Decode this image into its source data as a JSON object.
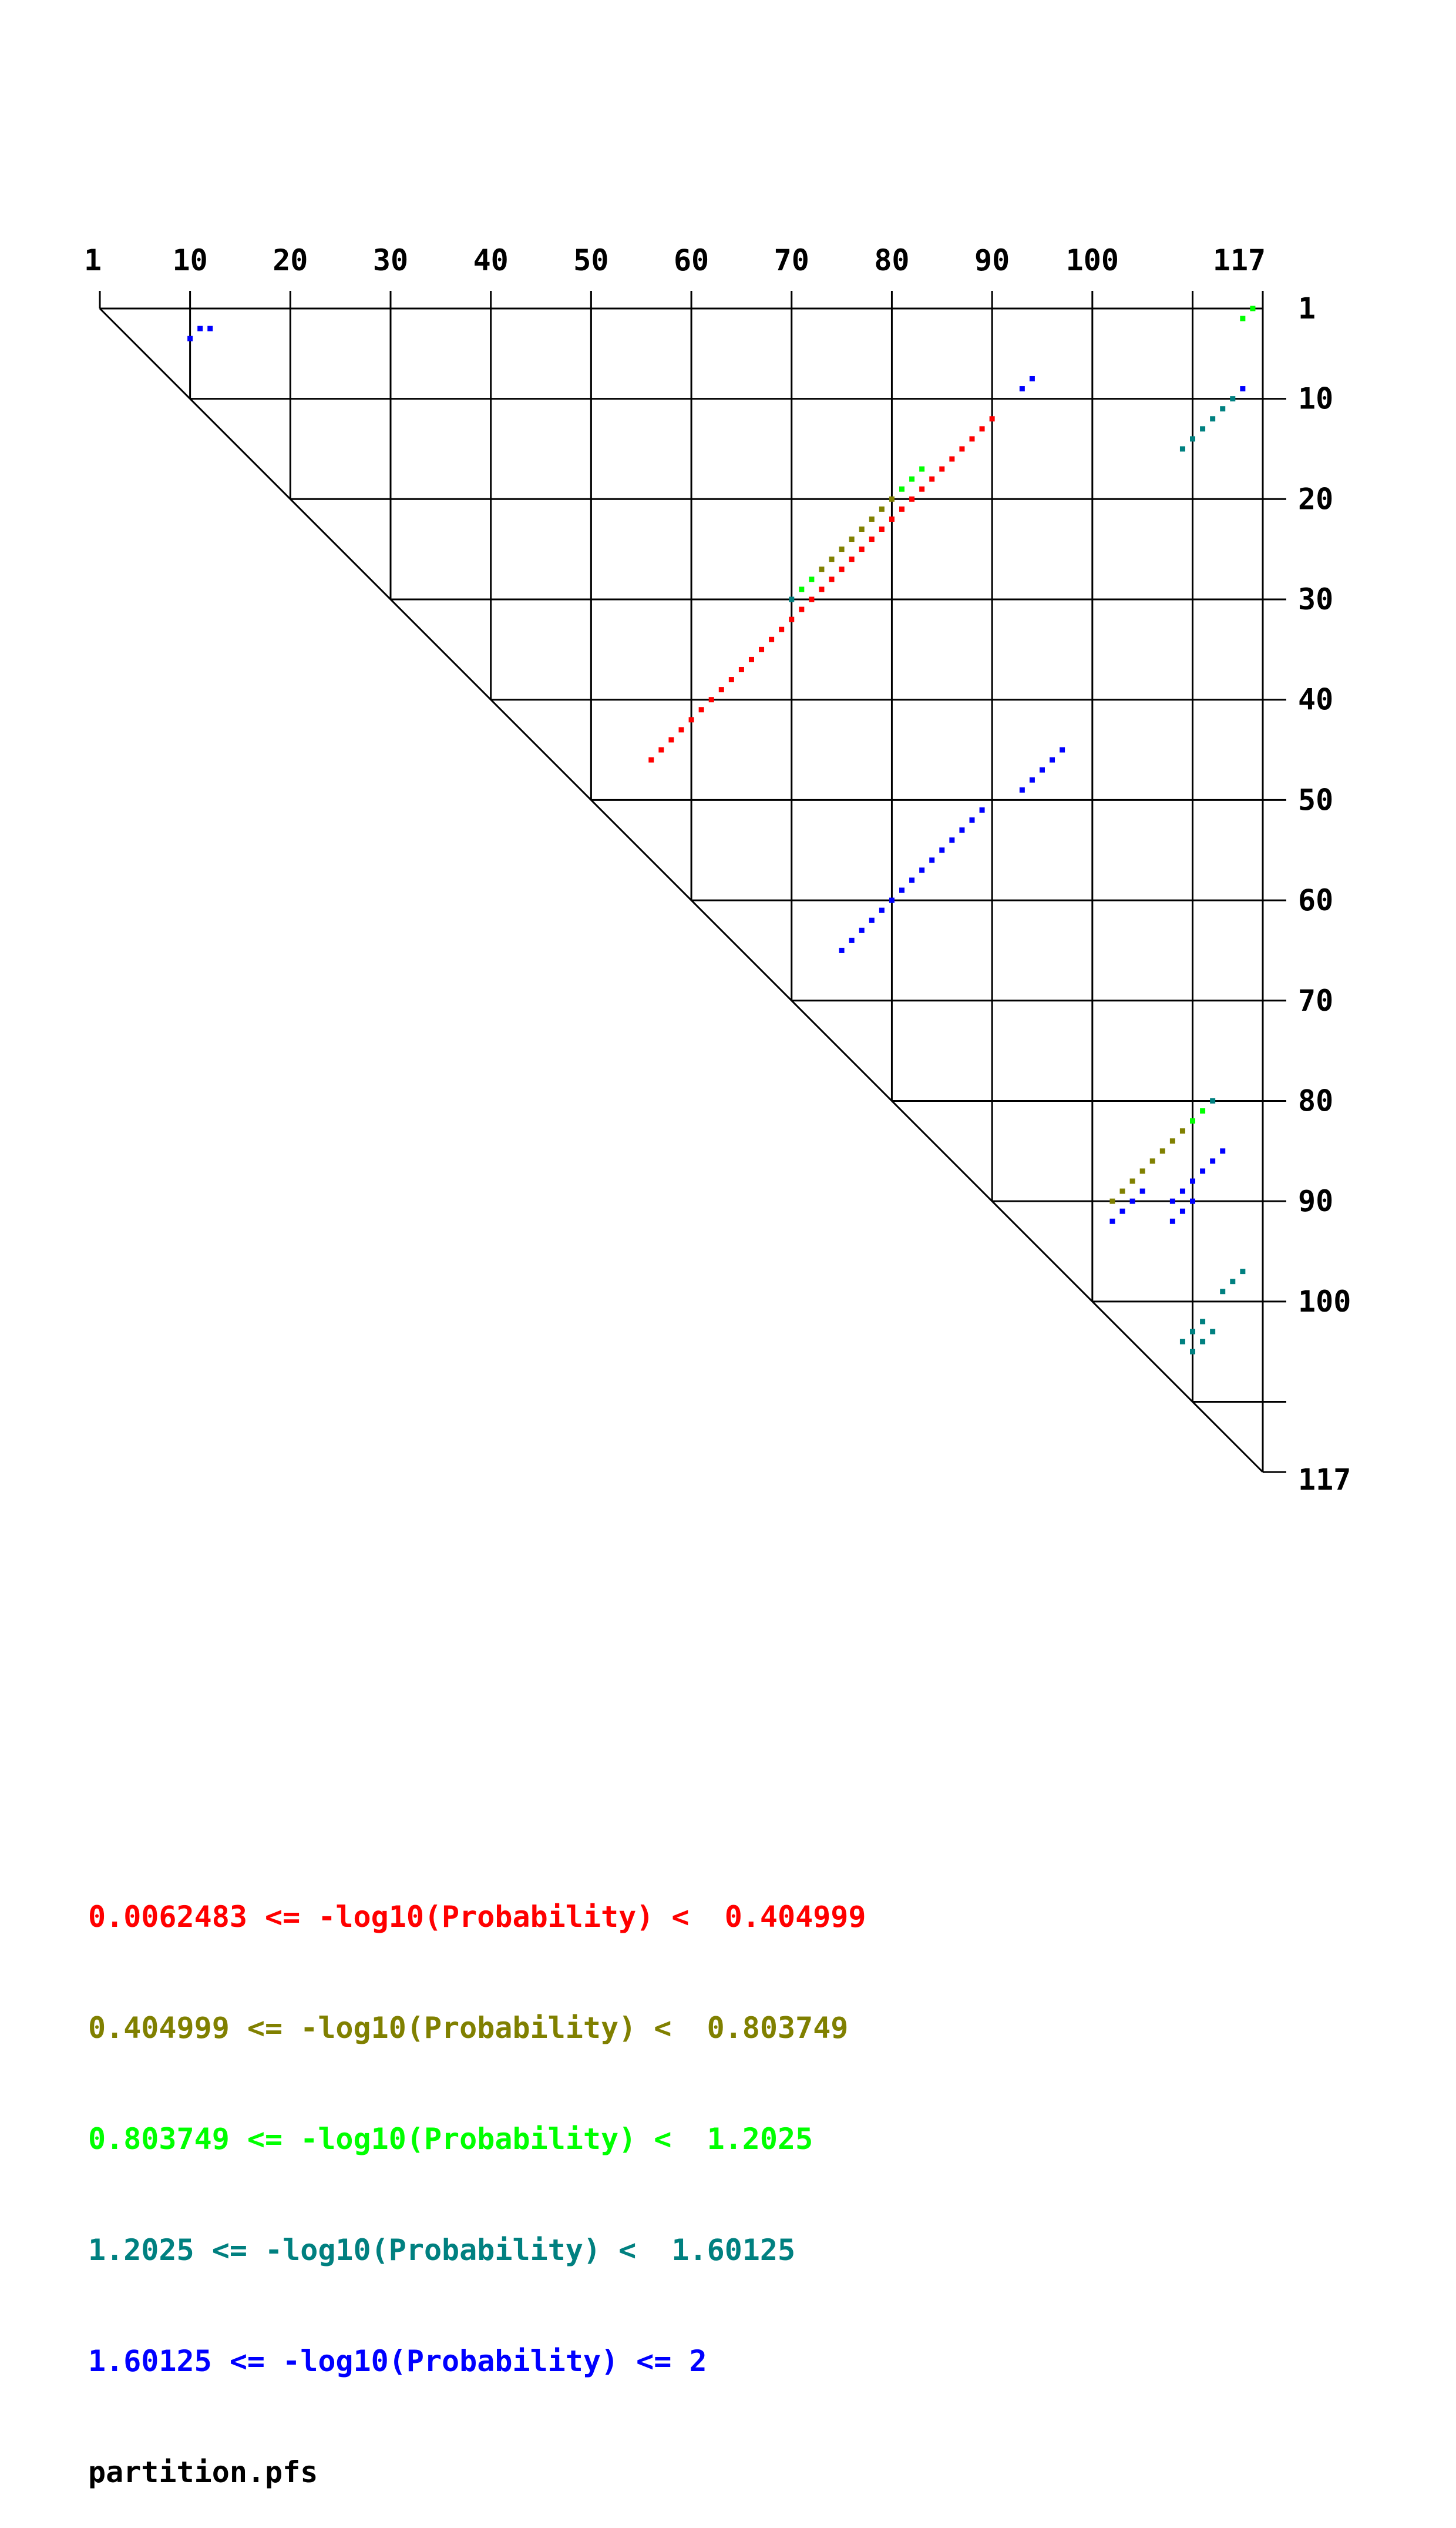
{
  "chart_data": {
    "type": "dot-plot",
    "sequence_length": 117,
    "top_ticks": [
      "1",
      "10",
      "20",
      "30",
      "40",
      "50",
      "60",
      "70",
      "80",
      "90",
      "100",
      "117"
    ],
    "right_ticks": [
      "1",
      "10",
      "20",
      "30",
      "40",
      "50",
      "60",
      "70",
      "80",
      "90",
      "100",
      "117"
    ],
    "grid_positions": [
      10,
      20,
      30,
      40,
      50,
      60,
      70,
      80,
      90,
      100,
      110
    ],
    "bins": [
      {
        "label": "0.0062483 <= -log10(Probability) <  0.404999",
        "color": "#ff0000"
      },
      {
        "label": "0.404999 <= -log10(Probability) <  0.803749",
        "color": "#808000"
      },
      {
        "label": "0.803749 <= -log10(Probability) <  1.2025",
        "color": "#00ff00"
      },
      {
        "label": "1.2025 <= -log10(Probability) <  1.60125",
        "color": "#008080"
      },
      {
        "label": "1.60125 <= -log10(Probability) <= 2",
        "color": "#0000ff"
      }
    ],
    "file_label": "partition.pfs",
    "dots": [
      {
        "bin": 4,
        "i": 3,
        "j": 11
      },
      {
        "bin": 4,
        "i": 3,
        "j": 12
      },
      {
        "bin": 4,
        "i": 4,
        "j": 10
      },
      {
        "bin": 2,
        "i": 1,
        "j": 116
      },
      {
        "bin": 2,
        "i": 2,
        "j": 115
      },
      {
        "bin": 4,
        "i": 8,
        "j": 94
      },
      {
        "bin": 4,
        "i": 9,
        "j": 93
      },
      {
        "bin": 4,
        "i": 9,
        "j": 115
      },
      {
        "bin": 3,
        "i": 10,
        "j": 114
      },
      {
        "bin": 3,
        "i": 11,
        "j": 113
      },
      {
        "bin": 3,
        "i": 12,
        "j": 112
      },
      {
        "bin": 3,
        "i": 13,
        "j": 111
      },
      {
        "bin": 3,
        "i": 14,
        "j": 110
      },
      {
        "bin": 3,
        "i": 15,
        "j": 109
      },
      {
        "bin": 0,
        "i": 12,
        "j": 90
      },
      {
        "bin": 0,
        "i": 13,
        "j": 89
      },
      {
        "bin": 0,
        "i": 14,
        "j": 88
      },
      {
        "bin": 0,
        "i": 15,
        "j": 87
      },
      {
        "bin": 0,
        "i": 16,
        "j": 86
      },
      {
        "bin": 0,
        "i": 17,
        "j": 85
      },
      {
        "bin": 0,
        "i": 18,
        "j": 84
      },
      {
        "bin": 0,
        "i": 19,
        "j": 83
      },
      {
        "bin": 0,
        "i": 20,
        "j": 82
      },
      {
        "bin": 0,
        "i": 21,
        "j": 81
      },
      {
        "bin": 0,
        "i": 22,
        "j": 80
      },
      {
        "bin": 0,
        "i": 23,
        "j": 79
      },
      {
        "bin": 0,
        "i": 24,
        "j": 78
      },
      {
        "bin": 0,
        "i": 25,
        "j": 77
      },
      {
        "bin": 0,
        "i": 26,
        "j": 76
      },
      {
        "bin": 0,
        "i": 27,
        "j": 75
      },
      {
        "bin": 0,
        "i": 28,
        "j": 74
      },
      {
        "bin": 0,
        "i": 29,
        "j": 73
      },
      {
        "bin": 0,
        "i": 30,
        "j": 72
      },
      {
        "bin": 0,
        "i": 31,
        "j": 71
      },
      {
        "bin": 0,
        "i": 32,
        "j": 70
      },
      {
        "bin": 0,
        "i": 33,
        "j": 69
      },
      {
        "bin": 0,
        "i": 34,
        "j": 68
      },
      {
        "bin": 0,
        "i": 35,
        "j": 67
      },
      {
        "bin": 0,
        "i": 36,
        "j": 66
      },
      {
        "bin": 0,
        "i": 37,
        "j": 65
      },
      {
        "bin": 0,
        "i": 38,
        "j": 64
      },
      {
        "bin": 0,
        "i": 39,
        "j": 63
      },
      {
        "bin": 0,
        "i": 40,
        "j": 62
      },
      {
        "bin": 0,
        "i": 41,
        "j": 61
      },
      {
        "bin": 0,
        "i": 42,
        "j": 60
      },
      {
        "bin": 0,
        "i": 43,
        "j": 59
      },
      {
        "bin": 0,
        "i": 44,
        "j": 58
      },
      {
        "bin": 0,
        "i": 45,
        "j": 57
      },
      {
        "bin": 0,
        "i": 46,
        "j": 56
      },
      {
        "bin": 2,
        "i": 17,
        "j": 83
      },
      {
        "bin": 2,
        "i": 18,
        "j": 82
      },
      {
        "bin": 2,
        "i": 19,
        "j": 81
      },
      {
        "bin": 1,
        "i": 20,
        "j": 80
      },
      {
        "bin": 1,
        "i": 21,
        "j": 79
      },
      {
        "bin": 1,
        "i": 22,
        "j": 78
      },
      {
        "bin": 1,
        "i": 23,
        "j": 77
      },
      {
        "bin": 1,
        "i": 24,
        "j": 76
      },
      {
        "bin": 1,
        "i": 25,
        "j": 75
      },
      {
        "bin": 1,
        "i": 26,
        "j": 74
      },
      {
        "bin": 1,
        "i": 27,
        "j": 73
      },
      {
        "bin": 2,
        "i": 28,
        "j": 72
      },
      {
        "bin": 2,
        "i": 29,
        "j": 71
      },
      {
        "bin": 3,
        "i": 30,
        "j": 70
      },
      {
        "bin": 4,
        "i": 45,
        "j": 97
      },
      {
        "bin": 4,
        "i": 46,
        "j": 96
      },
      {
        "bin": 4,
        "i": 47,
        "j": 95
      },
      {
        "bin": 4,
        "i": 48,
        "j": 94
      },
      {
        "bin": 4,
        "i": 49,
        "j": 93
      },
      {
        "bin": 4,
        "i": 51,
        "j": 89
      },
      {
        "bin": 4,
        "i": 52,
        "j": 88
      },
      {
        "bin": 4,
        "i": 53,
        "j": 87
      },
      {
        "bin": 4,
        "i": 54,
        "j": 86
      },
      {
        "bin": 4,
        "i": 55,
        "j": 85
      },
      {
        "bin": 4,
        "i": 56,
        "j": 84
      },
      {
        "bin": 4,
        "i": 57,
        "j": 83
      },
      {
        "bin": 4,
        "i": 58,
        "j": 82
      },
      {
        "bin": 4,
        "i": 59,
        "j": 81
      },
      {
        "bin": 4,
        "i": 60,
        "j": 80
      },
      {
        "bin": 4,
        "i": 61,
        "j": 79
      },
      {
        "bin": 4,
        "i": 62,
        "j": 78
      },
      {
        "bin": 4,
        "i": 63,
        "j": 77
      },
      {
        "bin": 4,
        "i": 64,
        "j": 76
      },
      {
        "bin": 4,
        "i": 65,
        "j": 75
      },
      {
        "bin": 3,
        "i": 80,
        "j": 112
      },
      {
        "bin": 2,
        "i": 81,
        "j": 111
      },
      {
        "bin": 2,
        "i": 82,
        "j": 110
      },
      {
        "bin": 1,
        "i": 83,
        "j": 109
      },
      {
        "bin": 1,
        "i": 84,
        "j": 108
      },
      {
        "bin": 1,
        "i": 85,
        "j": 107
      },
      {
        "bin": 1,
        "i": 86,
        "j": 106
      },
      {
        "bin": 1,
        "i": 87,
        "j": 105
      },
      {
        "bin": 1,
        "i": 88,
        "j": 104
      },
      {
        "bin": 1,
        "i": 89,
        "j": 103
      },
      {
        "bin": 1,
        "i": 90,
        "j": 102
      },
      {
        "bin": 4,
        "i": 85,
        "j": 113
      },
      {
        "bin": 4,
        "i": 86,
        "j": 112
      },
      {
        "bin": 4,
        "i": 87,
        "j": 111
      },
      {
        "bin": 4,
        "i": 88,
        "j": 110
      },
      {
        "bin": 4,
        "i": 89,
        "j": 109
      },
      {
        "bin": 4,
        "i": 89,
        "j": 105
      },
      {
        "bin": 4,
        "i": 90,
        "j": 104
      },
      {
        "bin": 4,
        "i": 90,
        "j": 108
      },
      {
        "bin": 4,
        "i": 90,
        "j": 110
      },
      {
        "bin": 4,
        "i": 91,
        "j": 103
      },
      {
        "bin": 4,
        "i": 91,
        "j": 109
      },
      {
        "bin": 4,
        "i": 92,
        "j": 102
      },
      {
        "bin": 4,
        "i": 92,
        "j": 108
      },
      {
        "bin": 3,
        "i": 97,
        "j": 115
      },
      {
        "bin": 3,
        "i": 98,
        "j": 114
      },
      {
        "bin": 3,
        "i": 99,
        "j": 113
      },
      {
        "bin": 3,
        "i": 102,
        "j": 111
      },
      {
        "bin": 3,
        "i": 103,
        "j": 110
      },
      {
        "bin": 3,
        "i": 103,
        "j": 112
      },
      {
        "bin": 3,
        "i": 104,
        "j": 109
      },
      {
        "bin": 3,
        "i": 104,
        "j": 111
      },
      {
        "bin": 3,
        "i": 105,
        "j": 110
      }
    ]
  }
}
